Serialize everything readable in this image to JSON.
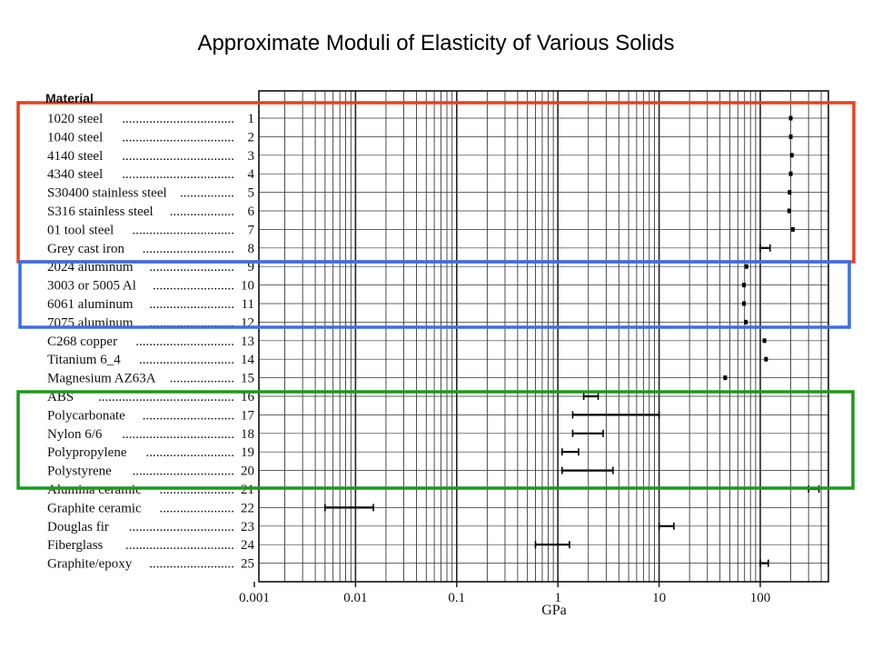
{
  "slide": {
    "title": "Approximate Moduli of Elasticity of Various Solids"
  },
  "chart_data": {
    "type": "range",
    "title": "Approximate Moduli of Elasticity of Various Solids",
    "column_header": "Material",
    "xlabel": "GPa",
    "x_scale": "log",
    "xlim": [
      0.001,
      400
    ],
    "x_ticks": [
      0.001,
      0.01,
      0.1,
      1,
      10,
      100
    ],
    "x_tick_labels": [
      "0.001",
      "0.01",
      "0.1",
      "1",
      "10",
      "100"
    ],
    "grid": "on",
    "rows": [
      {
        "n": "1",
        "material": "1020 steel",
        "min": 200,
        "max": 200
      },
      {
        "n": "2",
        "material": "1040 steel",
        "min": 200,
        "max": 200
      },
      {
        "n": "3",
        "material": "4140 steel",
        "min": 205,
        "max": 205
      },
      {
        "n": "4",
        "material": "4340 steel",
        "min": 200,
        "max": 200
      },
      {
        "n": "5",
        "material": "S30400 stainless steel",
        "min": 195,
        "max": 195
      },
      {
        "n": "6",
        "material": "S316 stainless steel",
        "min": 193,
        "max": 193
      },
      {
        "n": "7",
        "material": "01 tool steel",
        "min": 210,
        "max": 210
      },
      {
        "n": "8",
        "material": "Grey cast iron",
        "min": 100,
        "max": 125
      },
      {
        "n": "9",
        "material": "2024 aluminum",
        "min": 73,
        "max": 73
      },
      {
        "n": "10",
        "material": "3003 or 5005 Al",
        "min": 69,
        "max": 69
      },
      {
        "n": "11",
        "material": "6061 aluminum",
        "min": 69,
        "max": 69
      },
      {
        "n": "12",
        "material": "7075 aluminum",
        "min": 72,
        "max": 72
      },
      {
        "n": "13",
        "material": "C268 copper",
        "min": 110,
        "max": 110
      },
      {
        "n": "14",
        "material": "Titanium 6_4",
        "min": 114,
        "max": 114
      },
      {
        "n": "15",
        "material": "Magnesium AZ63A",
        "min": 45,
        "max": 45
      },
      {
        "n": "16",
        "material": "ABS",
        "min": 1.8,
        "max": 2.5
      },
      {
        "n": "17",
        "material": "Polycarbonate",
        "min": 1.4,
        "max": 10
      },
      {
        "n": "18",
        "material": "Nylon 6/6",
        "min": 1.4,
        "max": 2.8
      },
      {
        "n": "19",
        "material": "Polypropylene",
        "min": 1.1,
        "max": 1.6
      },
      {
        "n": "20",
        "material": "Polystyrene",
        "min": 1.1,
        "max": 3.5
      },
      {
        "n": "21",
        "material": "Alumina ceramic",
        "min": 300,
        "max": 380
      },
      {
        "n": "22",
        "material": "Graphite ceramic",
        "min": 0.005,
        "max": 0.015
      },
      {
        "n": "23",
        "material": "Douglas fir",
        "min": 10,
        "max": 14
      },
      {
        "n": "24",
        "material": "Fiberglass",
        "min": 0.6,
        "max": 1.3
      },
      {
        "n": "25",
        "material": "Graphite/epoxy",
        "min": 100,
        "max": 120
      }
    ]
  },
  "highlights": [
    {
      "name": "steels",
      "color": "#e8401c"
    },
    {
      "name": "aluminums",
      "color": "#3a6ee8"
    },
    {
      "name": "polymers",
      "color": "#1a9a1a"
    }
  ]
}
